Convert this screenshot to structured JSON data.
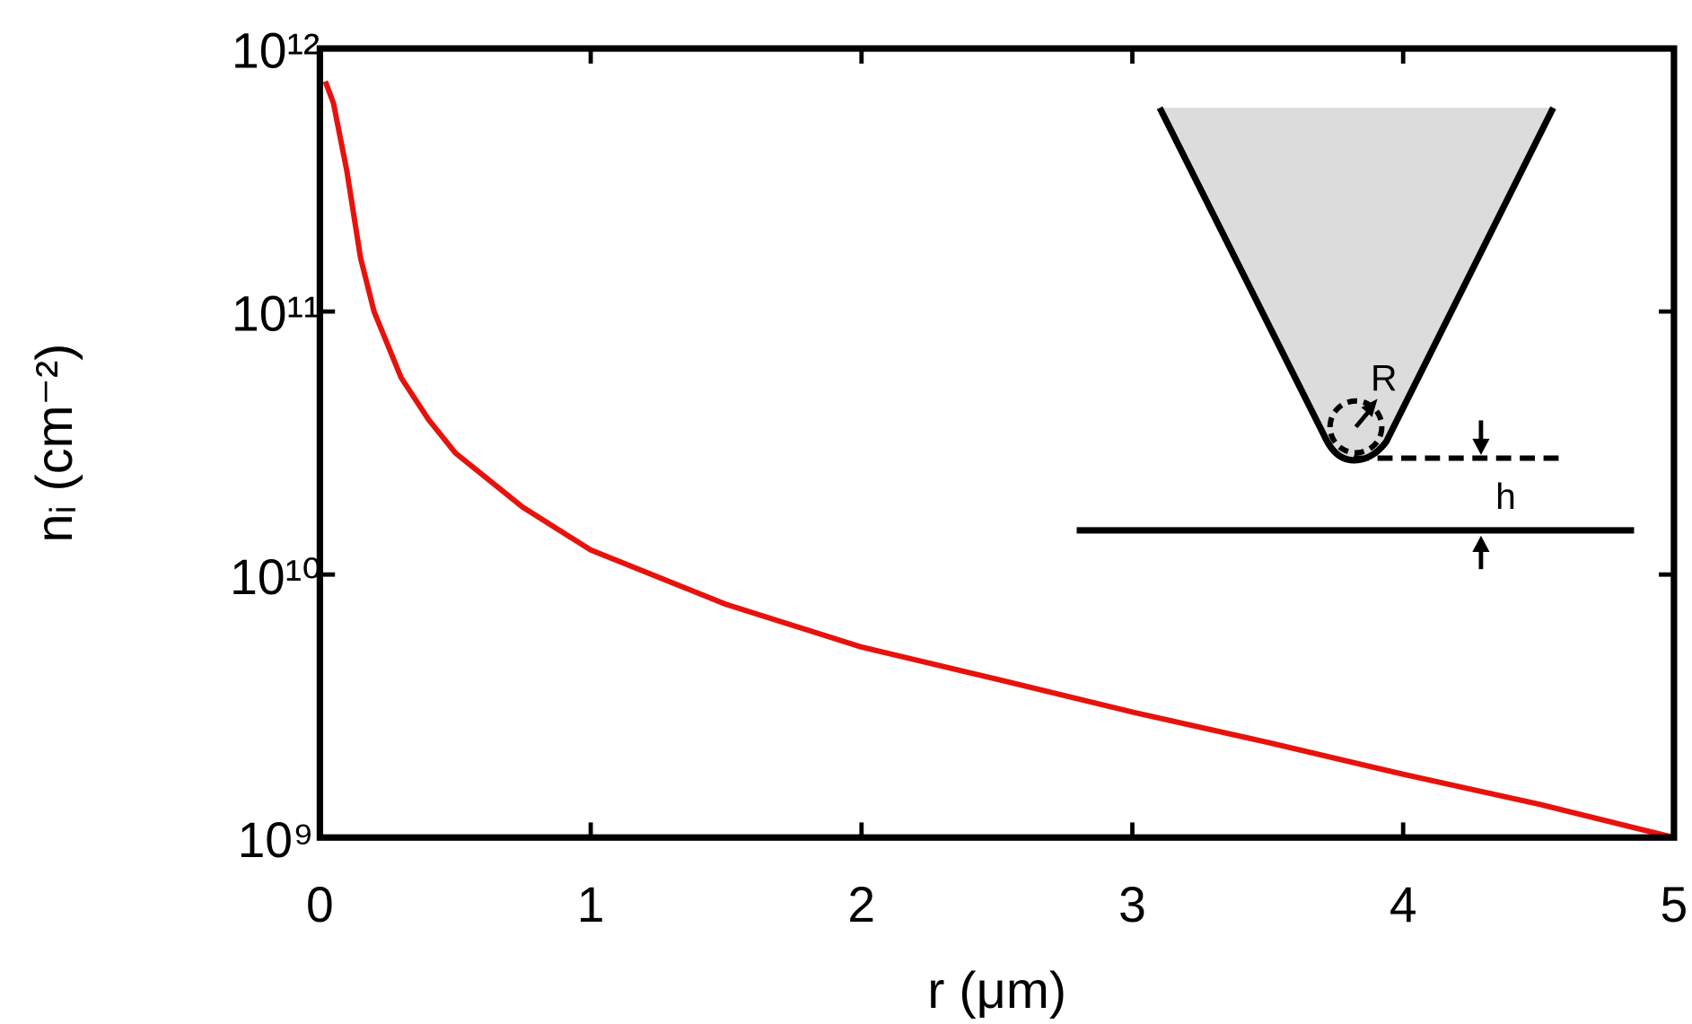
{
  "chart_data": {
    "type": "line",
    "xlabel": "r (μm)",
    "ylabel": "nᵢ (cm⁻²)",
    "log_y": true,
    "x": [
      0.02,
      0.05,
      0.1,
      0.15,
      0.2,
      0.3,
      0.4,
      0.5,
      0.75,
      1,
      1.5,
      2,
      2.5,
      3,
      3.5,
      4,
      4.5,
      5
    ],
    "series": [
      {
        "name": "nᵢ",
        "color": "#e8120c",
        "values": [
          750000000000,
          620000000000,
          340000000000,
          160000000000,
          100000000000,
          56000000000,
          39000000000,
          29000000000,
          18000000000,
          12400000000,
          7700000000,
          5300000000,
          4000000000,
          3000000000,
          2300000000,
          1740000000,
          1340000000,
          1000000000
        ]
      }
    ],
    "xlim": [
      0,
      5
    ],
    "xticks": [
      0,
      1,
      2,
      3,
      4,
      5
    ],
    "ylim": [
      1000000000,
      1000000000000
    ],
    "yticks": [
      {
        "value": 1000000000,
        "label": "10⁹"
      },
      {
        "value": 10000000000,
        "label": "10¹⁰"
      },
      {
        "value": 100000000000,
        "label": "10¹¹"
      },
      {
        "value": 1000000000000,
        "label": "10¹²"
      }
    ],
    "annotations": [
      "R",
      "h"
    ]
  }
}
